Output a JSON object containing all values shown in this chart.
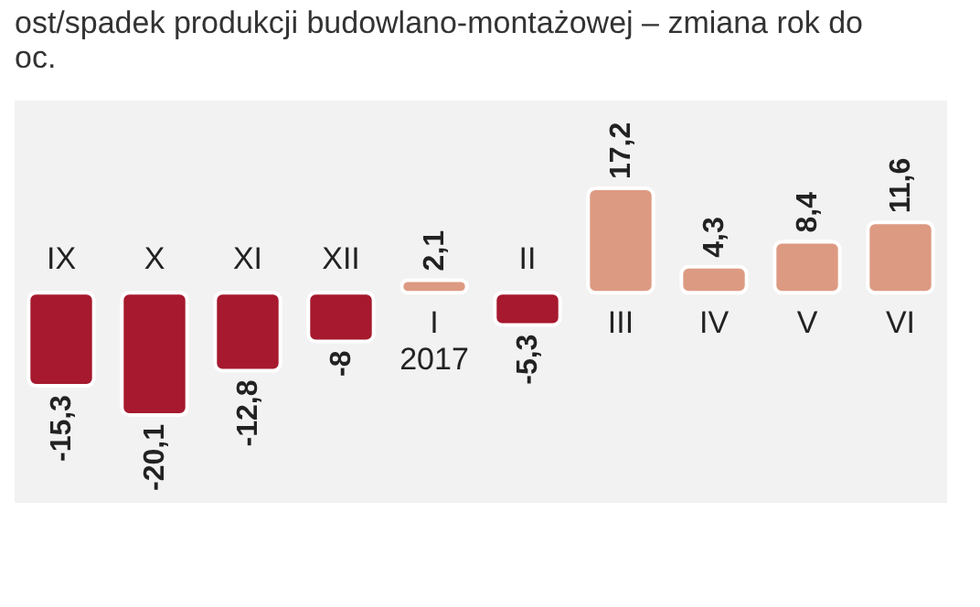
{
  "chart_data": {
    "type": "bar",
    "title": "ost/spadek produkcji budowlano-montażowej – zmiana rok do",
    "subtitle": "oc.",
    "categories": [
      "IX",
      "X",
      "XI",
      "XII",
      "I\n2017",
      "II",
      "III",
      "IV",
      "V",
      "VI"
    ],
    "values": [
      -15.3,
      -20.1,
      -12.8,
      -8,
      2.1,
      -5.3,
      17.2,
      4.3,
      8.4,
      11.6
    ],
    "colors": [
      "#a6192e",
      "#a6192e",
      "#a6192e",
      "#a6192e",
      "#dd9a82",
      "#a6192e",
      "#dd9a82",
      "#dd9a82",
      "#dd9a82",
      "#dd9a82"
    ],
    "value_labels": [
      "-15,3",
      "-20,1",
      "-12,8",
      "-8",
      "2,1",
      "-5,3",
      "17,2",
      "4,3",
      "8,4",
      "11,6"
    ]
  }
}
